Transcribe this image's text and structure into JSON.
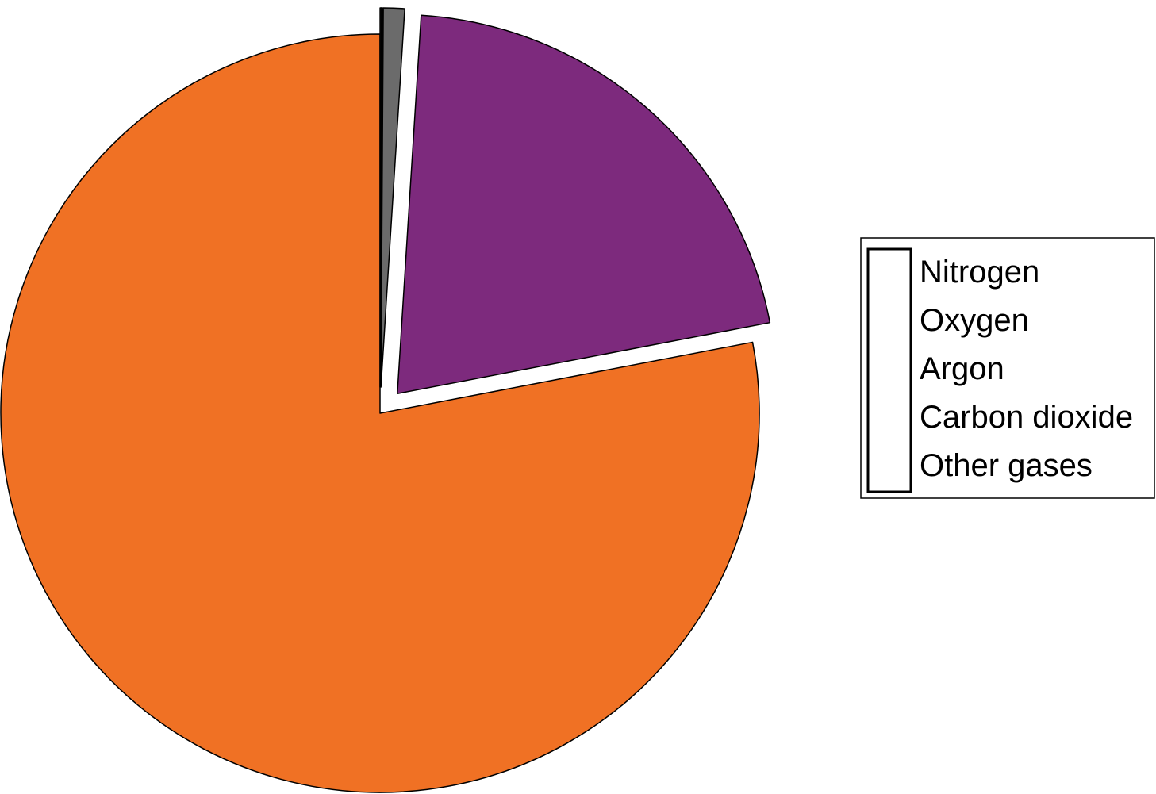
{
  "chart_data": {
    "type": "pie",
    "title": "",
    "categories": [
      "Nitrogen",
      "Oxygen",
      "Argon",
      "Carbon dioxide",
      "Other gases"
    ],
    "values": [
      78,
      21,
      0.9,
      0.04,
      0.06
    ],
    "unit": "%",
    "exploded": [
      false,
      true,
      true,
      true,
      true
    ],
    "start_angle": "12 o'clock",
    "direction": "counterclockwise",
    "legend": {
      "position": "right"
    },
    "colors": [
      "#F07124",
      "#7D2A7D",
      "#6B6B6B",
      "#3A3A3A",
      "#1A1A1A"
    ],
    "legend_swatch_fill": "#ffffff"
  }
}
